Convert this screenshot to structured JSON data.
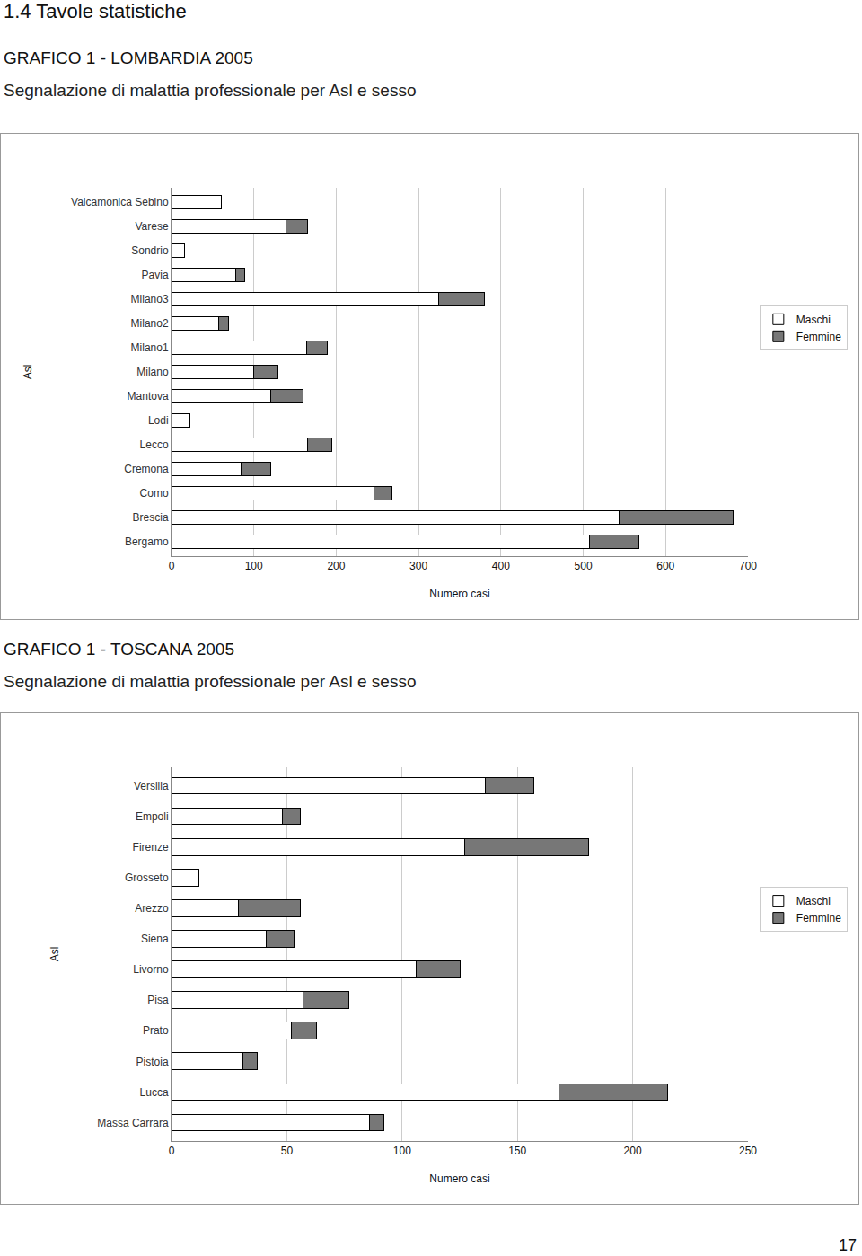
{
  "heading": "1.4 Tavole statistiche",
  "page_number": "17",
  "chart_data": [
    {
      "type": "bar",
      "title": "GRAFICO 1 - LOMBARDIA 2005",
      "subtitle": "Segnalazione di malattia professionale per Asl e sesso",
      "x_label": "Numero casi",
      "y_label": "Asl",
      "orientation": "horizontal",
      "stacked": true,
      "grid": true,
      "legend": "right",
      "categories": [
        "Bergamo",
        "Brescia",
        "Como",
        "Cremona",
        "Lecco",
        "Lodi",
        "Mantova",
        "Milano",
        "Milano1",
        "Milano2",
        "Milano3",
        "Pavia",
        "Sondrio",
        "Varese",
        "Valcamonica Sebino"
      ],
      "series": [
        {
          "name": "Maschi",
          "color": "#ffffff",
          "values": [
            508,
            544,
            246,
            84,
            165,
            22,
            120,
            100,
            164,
            57,
            324,
            78,
            16,
            139,
            60
          ]
        },
        {
          "name": "Femmine",
          "color": "#777777",
          "values": [
            60,
            138,
            22,
            36,
            30,
            0,
            40,
            29,
            25,
            12,
            56,
            11,
            0,
            26,
            0
          ]
        }
      ],
      "xlim": [
        0,
        700
      ],
      "xticks": [
        0,
        100,
        200,
        300,
        400,
        500,
        600,
        700
      ]
    },
    {
      "type": "bar",
      "title": "GRAFICO 1 - TOSCANA 2005",
      "subtitle": "Segnalazione di malattia professionale per Asl e sesso",
      "x_label": "Numero casi",
      "y_label": "Asl",
      "orientation": "horizontal",
      "stacked": true,
      "grid": true,
      "legend": "right",
      "categories": [
        "Massa Carrara",
        "Lucca",
        "Pistoia",
        "Prato",
        "Pisa",
        "Livorno",
        "Siena",
        "Arezzo",
        "Grosseto",
        "Firenze",
        "Empoli",
        "Versilia"
      ],
      "series": [
        {
          "name": "Maschi",
          "color": "#ffffff",
          "values": [
            86,
            168,
            31,
            52,
            57,
            106,
            41,
            29,
            12,
            127,
            48,
            136
          ]
        },
        {
          "name": "Femmine",
          "color": "#777777",
          "values": [
            6,
            47,
            6,
            11,
            20,
            19,
            12,
            27,
            0,
            54,
            8,
            21
          ]
        }
      ],
      "xlim": [
        0,
        250
      ],
      "xticks": [
        0,
        50,
        100,
        150,
        200,
        250
      ]
    }
  ]
}
